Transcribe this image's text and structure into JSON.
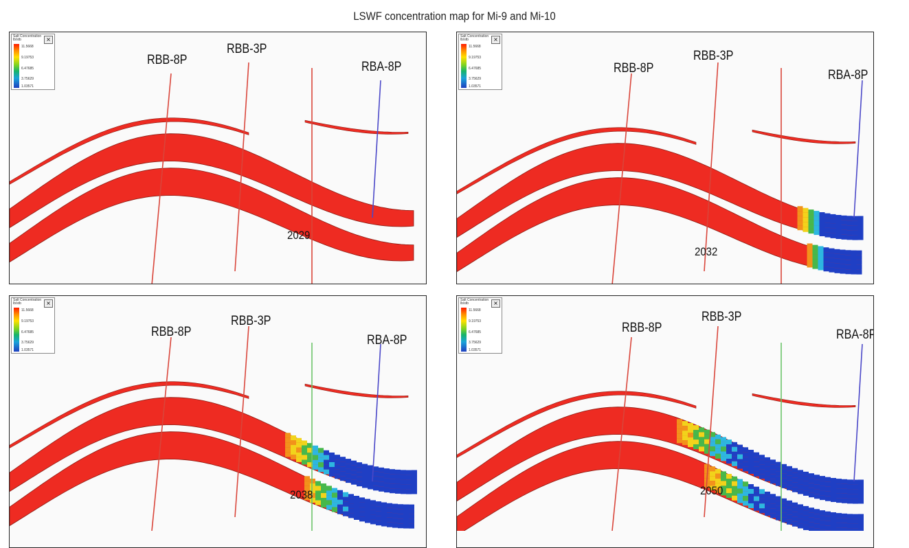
{
  "figure": {
    "title": "LSWF concentration map for Mi-9 and Mi-10"
  },
  "legend": {
    "title": "Salt Concentration  lb/stb",
    "close_glyph": "×",
    "ticks": [
      "11.5668",
      "9.19753",
      "6.47685",
      "3.75629",
      "1.03571"
    ]
  },
  "panels": [
    {
      "year": "2029",
      "wells": [
        "RBB-8P",
        "RBB-3P",
        "RBA-8P"
      ]
    },
    {
      "year": "2032",
      "wells": [
        "RBB-8P",
        "RBB-3P",
        "RBA-8P"
      ]
    },
    {
      "year": "2038",
      "wells": [
        "RBB-8P",
        "RBB-3P",
        "RBA-8P"
      ]
    },
    {
      "year": "2050",
      "wells": [
        "RBB-8P",
        "RBB-3P",
        "RBA-8P"
      ]
    }
  ],
  "colors": {
    "reservoir": "#ee2b22",
    "reservoir_edge": "#8a1b12",
    "well_red": "#d9453a",
    "well_blue": "#4b48c8",
    "well_green": "#6cc46a",
    "low_salt": "#1f3fc4",
    "mid_cyan": "#2db7e0",
    "mid_green": "#47b84b",
    "mid_yellow": "#f2d31b",
    "mid_orange": "#f2921b"
  }
}
